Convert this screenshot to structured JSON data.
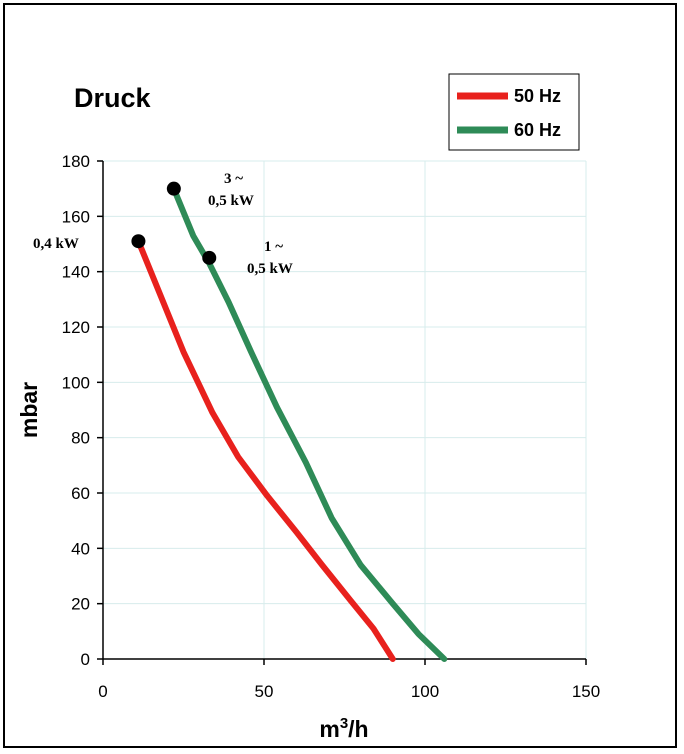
{
  "chart_data": {
    "type": "line",
    "title": "Druck",
    "xlabel": "m³/h",
    "ylabel": "mbar",
    "xlim": [
      0,
      150
    ],
    "ylim": [
      0,
      180
    ],
    "x_ticks": [
      "0",
      "50",
      "100",
      "150"
    ],
    "y_ticks": [
      "0",
      "20",
      "40",
      "60",
      "80",
      "100",
      "120",
      "140",
      "160",
      "180"
    ],
    "grid": true,
    "legend_position": "top-right",
    "series": [
      {
        "name": "50 Hz",
        "color": "#e8211d",
        "points": [
          [
            11,
            151
          ],
          [
            18,
            131
          ],
          [
            25,
            111
          ],
          [
            34,
            89
          ],
          [
            42,
            73
          ],
          [
            51,
            59
          ],
          [
            60,
            46
          ],
          [
            68,
            34
          ],
          [
            77,
            21
          ],
          [
            84,
            11
          ],
          [
            90,
            0
          ]
        ]
      },
      {
        "name": "60 Hz",
        "color": "#2e8b57",
        "points": [
          [
            22,
            170
          ],
          [
            28,
            153
          ],
          [
            33,
            143
          ],
          [
            39,
            129
          ],
          [
            46,
            111
          ],
          [
            54,
            91
          ],
          [
            63,
            71
          ],
          [
            71,
            51
          ],
          [
            80,
            34
          ],
          [
            90,
            20
          ],
          [
            98,
            9
          ],
          [
            106,
            0
          ]
        ]
      }
    ],
    "markers": [
      {
        "x": 11,
        "y": 151
      },
      {
        "x": 22,
        "y": 170
      },
      {
        "x": 33,
        "y": 145
      }
    ],
    "annotations": [
      {
        "lines": [
          "0,4 kW"
        ]
      },
      {
        "lines": [
          "3 ~",
          "0,5 kW"
        ]
      },
      {
        "lines": [
          "1 ~",
          "0,5 kW"
        ]
      }
    ]
  },
  "colors": {
    "grid": "#d7ecec",
    "axis": "#000000",
    "marker": "#000000"
  }
}
